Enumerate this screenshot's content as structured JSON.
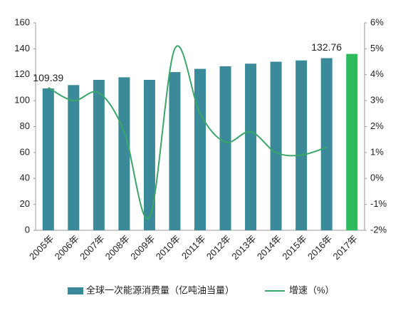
{
  "chart_data": {
    "type": "bar_line",
    "categories": [
      "2005年",
      "2006年",
      "2007年",
      "2008年",
      "2009年",
      "2010年",
      "2011年",
      "2012年",
      "2013年",
      "2014年",
      "2015年",
      "2016年",
      "2017年"
    ],
    "series": [
      {
        "name": "全球一次能源消费量（亿吨油当量）",
        "type": "bar",
        "color": "#3a8a99",
        "colors": [
          "#3a8a99",
          "#3a8a99",
          "#3a8a99",
          "#3a8a99",
          "#3a8a99",
          "#3a8a99",
          "#3a8a99",
          "#3a8a99",
          "#3a8a99",
          "#3a8a99",
          "#3a8a99",
          "#3a8a99",
          "#2dbb5c"
        ],
        "values": [
          109.39,
          112,
          116,
          118,
          116,
          122,
          124.5,
          126.5,
          128.5,
          130,
          131,
          132.76,
          136
        ],
        "value_labels": [
          "109.39",
          null,
          null,
          null,
          null,
          null,
          null,
          null,
          null,
          null,
          null,
          "132.76",
          null
        ]
      },
      {
        "name": "增速（%）",
        "type": "line",
        "axis": "y2",
        "color": "#3aa66a",
        "values": [
          3.5,
          3.0,
          3.3,
          1.8,
          -1.5,
          5.0,
          2.5,
          1.4,
          1.8,
          1.0,
          0.9,
          1.2,
          null
        ]
      }
    ],
    "ylim": [
      0,
      160
    ],
    "yticks": [
      0,
      20,
      40,
      60,
      80,
      100,
      120,
      140,
      160
    ],
    "y2lim": [
      -2,
      6
    ],
    "y2ticks": [
      {
        "value": -2,
        "label": "-2%"
      },
      {
        "value": -1,
        "label": "-1%"
      },
      {
        "value": 0,
        "label": "0%"
      },
      {
        "value": 1,
        "label": "1%"
      },
      {
        "value": 2,
        "label": "2%"
      },
      {
        "value": 3,
        "label": "3%"
      },
      {
        "value": 4,
        "label": "4%"
      },
      {
        "value": 5,
        "label": "5%"
      },
      {
        "value": 6,
        "label": "6%"
      }
    ],
    "legend": "bottom"
  }
}
